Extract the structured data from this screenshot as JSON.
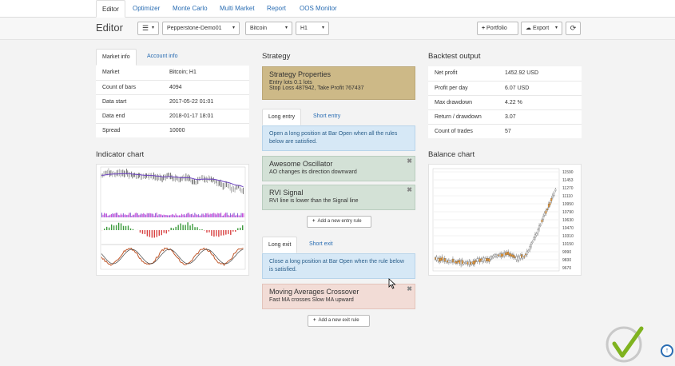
{
  "nav": {
    "tabs": [
      {
        "label": "Editor",
        "active": true
      },
      {
        "label": "Optimizer"
      },
      {
        "label": "Monte Carlo"
      },
      {
        "label": "Multi Market"
      },
      {
        "label": "Report"
      },
      {
        "label": "OOS Monitor"
      }
    ]
  },
  "toolbar": {
    "title": "Editor",
    "menu_icon": "hamburger-icon",
    "server": "Pepperstone-Demo01",
    "symbol": "Bitcoin",
    "period": "H1",
    "portfolio_label": "Portfolio",
    "export_label": "Export",
    "refresh_icon": "refresh-icon"
  },
  "market_info": {
    "tabs": [
      "Market info",
      "Account info"
    ],
    "rows": [
      {
        "label": "Market",
        "value": "Bitcoin; H1"
      },
      {
        "label": "Count of bars",
        "value": "4094"
      },
      {
        "label": "Data start",
        "value": "2017-05-22 01:01"
      },
      {
        "label": "Data end",
        "value": "2018-01-17 18:01"
      },
      {
        "label": "Spread",
        "value": "10000"
      }
    ]
  },
  "indicator_chart": {
    "title": "Indicator chart"
  },
  "strategy": {
    "title": "Strategy",
    "properties": {
      "title": "Strategy Properties",
      "line1": "Entry lots 0.1 lots",
      "line2": "Stop Loss 487942, Take Profit 767437"
    },
    "entry_tabs": [
      "Long entry",
      "Short entry"
    ],
    "entry_info": "Open a long position at Bar Open when all the rules below are satisfied.",
    "entry_rules": [
      {
        "title": "Awesome Oscillator",
        "desc": "AO changes its direction downward"
      },
      {
        "title": "RVI Signal",
        "desc": "RVI line is lower than the Signal line"
      }
    ],
    "add_entry_label": "Add a new entry rule",
    "exit_tabs": [
      "Long exit",
      "Short exit"
    ],
    "exit_info": "Close a long position at Bar Open when the rule below is satisfied.",
    "exit_rules": [
      {
        "title": "Moving Averages Crossover",
        "desc": "Fast MA crosses Slow MA upward"
      }
    ],
    "add_exit_label": "Add a new exit rule"
  },
  "backtest": {
    "title": "Backtest output",
    "rows": [
      {
        "label": "Net profit",
        "value": "1452.92 USD"
      },
      {
        "label": "Profit per day",
        "value": "6.07 USD"
      },
      {
        "label": "Max drawdown",
        "value": "4.22 %"
      },
      {
        "label": "Return / drawdown",
        "value": "3.07"
      },
      {
        "label": "Count of trades",
        "value": "57"
      }
    ]
  },
  "balance_chart": {
    "title": "Balance chart",
    "y_ticks": [
      "11590",
      "11453",
      "11270",
      "11110",
      "10950",
      "10790",
      "10630",
      "10470",
      "10310",
      "10150",
      "9990",
      "9830",
      "9670"
    ]
  },
  "colors": {
    "accent": "#2a6db3",
    "properties_bg": "#cdb987",
    "entry_rule_bg": "#d3e1d6",
    "exit_rule_bg": "#f2dcd6",
    "info_bg": "#d6e8f6"
  }
}
